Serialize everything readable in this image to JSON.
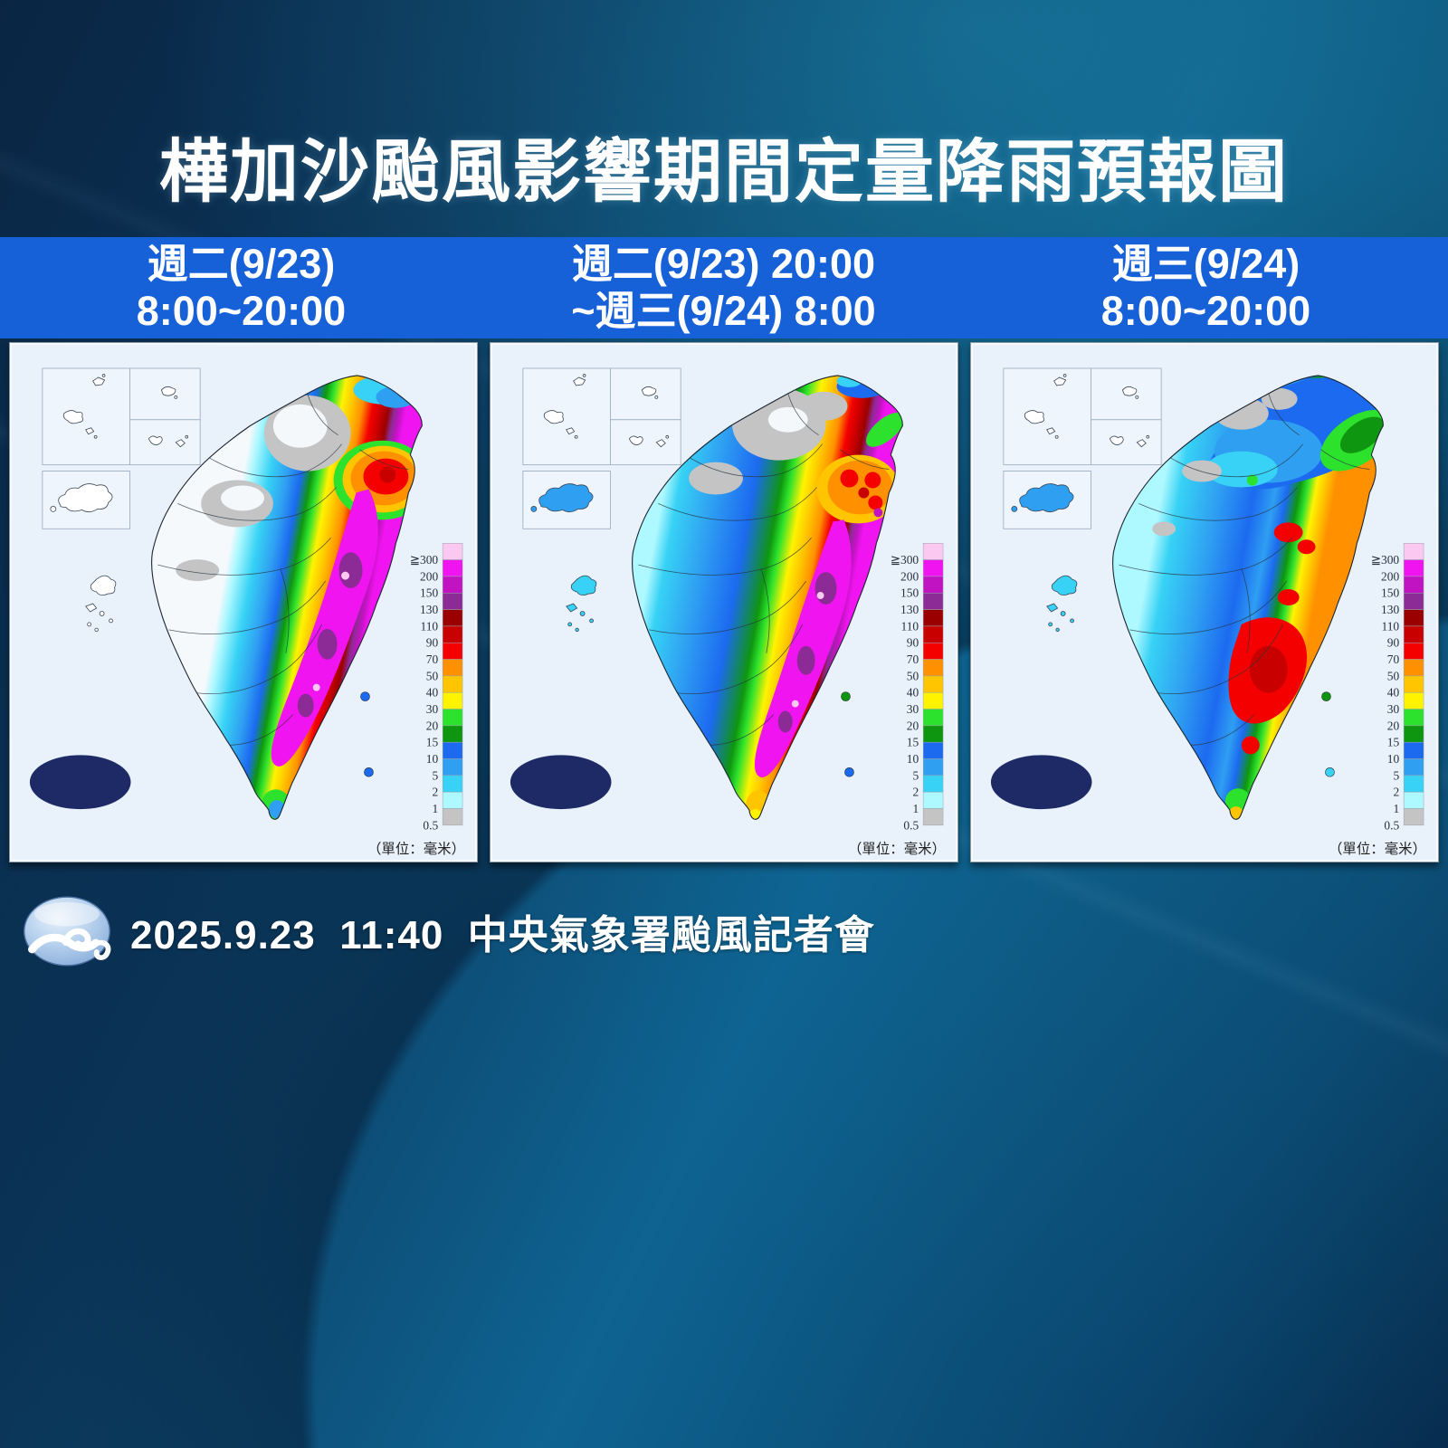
{
  "page_title": "樺加沙颱風影響期間定量降雨預報圖",
  "columns": [
    {
      "line1": "週二(9/23)",
      "line2": "8:00~20:00"
    },
    {
      "line1": "週二(9/23) 20:00",
      "line2": "~週三(9/24) 8:00"
    },
    {
      "line1": "週三(9/24)",
      "line2": "8:00~20:00"
    }
  ],
  "legend": {
    "labels": [
      "≧300",
      "200",
      "150",
      "130",
      "110",
      "90",
      "70",
      "50",
      "40",
      "30",
      "20",
      "15",
      "10",
      "5",
      "2",
      "1",
      "0.5"
    ],
    "colors": [
      "#fac8f0",
      "#f014f0",
      "#c213c2",
      "#8c2b96",
      "#9a0000",
      "#c80000",
      "#f50000",
      "#ff9000",
      "#ffc500",
      "#fff300",
      "#2ce22c",
      "#0f9610",
      "#1c6af0",
      "#2f9ff2",
      "#37d2f5",
      "#aef8ff",
      "#c4c4c4"
    ],
    "unit_label": "（單位：毫米）"
  },
  "footer": {
    "caption": "2025.9.23  11:40  中央氣象署颱風記者會"
  },
  "branding": {
    "agency": "中央氣象署",
    "logo": "cwa-swirl"
  },
  "colors": {
    "header_band": "#1660d8",
    "panel_bg": "#e9f2fb",
    "logo_navy": "#1d2a66"
  }
}
